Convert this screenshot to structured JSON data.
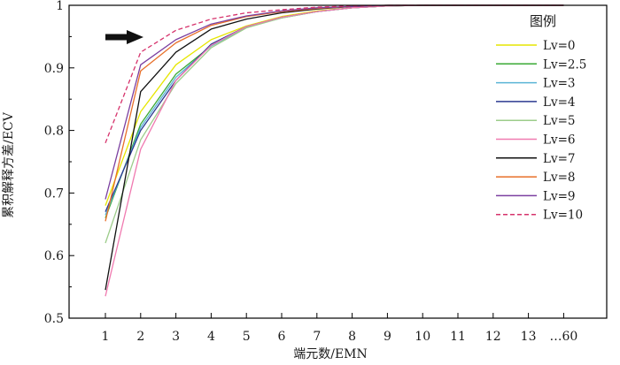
{
  "chart_data": {
    "type": "line",
    "title": "",
    "xlabel": "端元数/EMN",
    "ylabel": "累积解释方差/ECV",
    "categories": [
      "1",
      "2",
      "3",
      "4",
      "5",
      "6",
      "7",
      "8",
      "9",
      "10",
      "11",
      "12",
      "13",
      "…60"
    ],
    "ylim": [
      0.5,
      1.0
    ],
    "yticks": [
      "0.5",
      "0.6",
      "0.7",
      "0.8",
      "0.9",
      "1"
    ],
    "grid": false,
    "legend": {
      "title": "图例",
      "position": "right"
    },
    "annotation": "arrow pointing right near EMN 2",
    "series": [
      {
        "name": "Lv=0",
        "color": "#e6e600",
        "dash": "solid",
        "values": [
          0.68,
          0.83,
          0.905,
          0.945,
          0.967,
          0.982,
          0.991,
          0.996,
          0.999,
          1.0,
          1.0,
          1.0,
          1.0,
          1.0
        ]
      },
      {
        "name": "Lv=2.5",
        "color": "#3aaa35",
        "dash": "solid",
        "values": [
          0.66,
          0.81,
          0.89,
          0.935,
          0.965,
          0.98,
          0.99,
          0.996,
          0.999,
          1.0,
          1.0,
          1.0,
          1.0,
          1.0
        ]
      },
      {
        "name": "Lv=3",
        "color": "#5ab4d6",
        "dash": "solid",
        "values": [
          0.665,
          0.805,
          0.885,
          0.935,
          0.965,
          0.98,
          0.99,
          0.996,
          0.999,
          1.0,
          1.0,
          1.0,
          1.0,
          1.0
        ]
      },
      {
        "name": "Lv=4",
        "color": "#2b3990",
        "dash": "solid",
        "values": [
          0.67,
          0.8,
          0.88,
          0.938,
          0.966,
          0.981,
          0.99,
          0.996,
          0.999,
          1.0,
          1.0,
          1.0,
          1.0,
          1.0
        ]
      },
      {
        "name": "Lv=5",
        "color": "#9ccc8a",
        "dash": "solid",
        "values": [
          0.62,
          0.785,
          0.875,
          0.932,
          0.964,
          0.98,
          0.99,
          0.996,
          0.999,
          1.0,
          1.0,
          1.0,
          1.0,
          1.0
        ]
      },
      {
        "name": "Lv=6",
        "color": "#f07ab0",
        "dash": "solid",
        "values": [
          0.535,
          0.77,
          0.88,
          0.936,
          0.966,
          0.981,
          0.99,
          0.996,
          0.999,
          1.0,
          1.0,
          1.0,
          1.0,
          1.0
        ]
      },
      {
        "name": "Lv=7",
        "color": "#111111",
        "dash": "solid",
        "values": [
          0.545,
          0.862,
          0.925,
          0.962,
          0.978,
          0.988,
          0.994,
          0.998,
          1.0,
          1.0,
          1.0,
          1.0,
          1.0,
          1.0
        ]
      },
      {
        "name": "Lv=8",
        "color": "#e8702a",
        "dash": "solid",
        "values": [
          0.655,
          0.895,
          0.94,
          0.968,
          0.982,
          0.99,
          0.995,
          0.998,
          1.0,
          1.0,
          1.0,
          1.0,
          1.0,
          1.0
        ]
      },
      {
        "name": "Lv=9",
        "color": "#7b3fa0",
        "dash": "solid",
        "values": [
          0.69,
          0.905,
          0.945,
          0.97,
          0.983,
          0.991,
          0.996,
          0.998,
          1.0,
          1.0,
          1.0,
          1.0,
          1.0,
          1.0
        ]
      },
      {
        "name": "Lv=10",
        "color": "#d6336c",
        "dash": "dashed",
        "values": [
          0.78,
          0.925,
          0.96,
          0.978,
          0.988,
          0.993,
          0.997,
          0.999,
          1.0,
          1.0,
          1.0,
          1.0,
          1.0,
          1.0
        ]
      }
    ]
  }
}
